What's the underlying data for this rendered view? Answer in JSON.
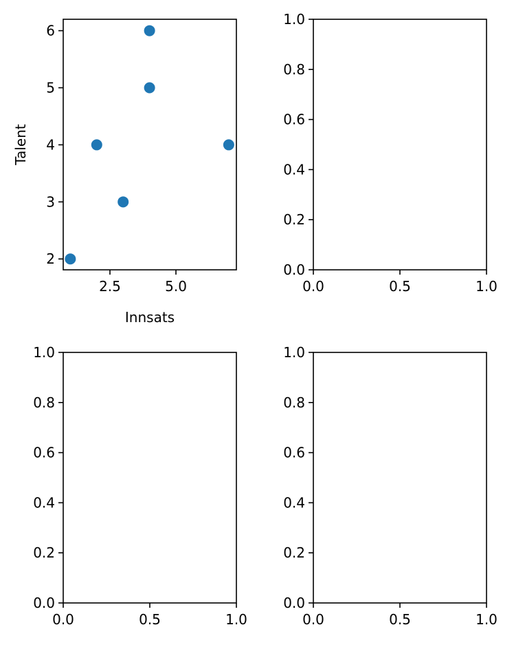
{
  "chart_data": [
    {
      "type": "scatter",
      "title": "",
      "xlabel": "Innsats",
      "ylabel": "Talent",
      "x": [
        1,
        2,
        3,
        4,
        4,
        7
      ],
      "y": [
        2,
        4,
        3,
        5,
        6,
        4
      ],
      "xlim": [
        0.73,
        7.29
      ],
      "ylim": [
        1.81,
        6.2
      ],
      "xticks": [
        2.5,
        5.0
      ],
      "xtick_labels": [
        "2.5",
        "5.0"
      ],
      "yticks": [
        2,
        3,
        4,
        5,
        6
      ],
      "ytick_labels": [
        "2",
        "3",
        "4",
        "5",
        "6"
      ],
      "color": "#1f77b4",
      "grid": false
    },
    {
      "type": "scatter",
      "title": "",
      "xlabel": "",
      "ylabel": "",
      "x": [],
      "y": [],
      "xlim": [
        0,
        1
      ],
      "ylim": [
        0,
        1
      ],
      "xticks": [
        0,
        0.5,
        1
      ],
      "xtick_labels": [
        "0.0",
        "0.5",
        "1.0"
      ],
      "yticks": [
        0,
        0.2,
        0.4,
        0.6,
        0.8,
        1
      ],
      "ytick_labels": [
        "0.0",
        "0.2",
        "0.4",
        "0.6",
        "0.8",
        "1.0"
      ],
      "grid": false
    },
    {
      "type": "scatter",
      "title": "",
      "xlabel": "",
      "ylabel": "",
      "x": [],
      "y": [],
      "xlim": [
        0,
        1
      ],
      "ylim": [
        0,
        1
      ],
      "xticks": [
        0,
        0.5,
        1
      ],
      "xtick_labels": [
        "0.0",
        "0.5",
        "1.0"
      ],
      "yticks": [
        0,
        0.2,
        0.4,
        0.6,
        0.8,
        1
      ],
      "ytick_labels": [
        "0.0",
        "0.2",
        "0.4",
        "0.6",
        "0.8",
        "1.0"
      ],
      "grid": false
    },
    {
      "type": "scatter",
      "title": "",
      "xlabel": "",
      "ylabel": "",
      "x": [],
      "y": [],
      "xlim": [
        0,
        1
      ],
      "ylim": [
        0,
        1
      ],
      "xticks": [
        0,
        0.5,
        1
      ],
      "xtick_labels": [
        "0.0",
        "0.5",
        "1.0"
      ],
      "yticks": [
        0,
        0.2,
        0.4,
        0.6,
        0.8,
        1
      ],
      "ytick_labels": [
        "0.0",
        "0.2",
        "0.4",
        "0.6",
        "0.8",
        "1.0"
      ],
      "grid": false
    }
  ]
}
